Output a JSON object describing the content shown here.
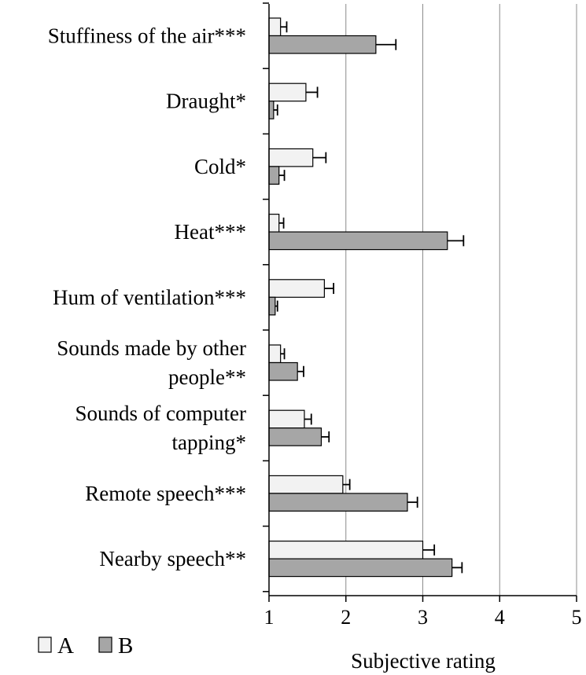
{
  "chart_data": {
    "type": "bar",
    "orientation": "horizontal",
    "categories": [
      [
        "Stuffiness of the air***"
      ],
      [
        "Draught*"
      ],
      [
        "Cold*"
      ],
      [
        "Heat***"
      ],
      [
        "Hum of ventilation***"
      ],
      [
        "Sounds made by other",
        "people**"
      ],
      [
        "Sounds of computer",
        "tapping*"
      ],
      [
        "Remote speech***"
      ],
      [
        "Nearby speech**"
      ]
    ],
    "series": [
      {
        "name": "A",
        "color": "#f2f2f2",
        "values": [
          1.15,
          1.48,
          1.57,
          1.13,
          1.72,
          1.15,
          1.46,
          1.96,
          3.0
        ],
        "errors": [
          0.08,
          0.15,
          0.17,
          0.06,
          0.12,
          0.05,
          0.09,
          0.09,
          0.15
        ]
      },
      {
        "name": "B",
        "color": "#a6a6a6",
        "values": [
          2.39,
          1.06,
          1.13,
          3.32,
          1.08,
          1.37,
          1.68,
          2.8,
          3.38
        ],
        "errors": [
          0.26,
          0.05,
          0.07,
          0.21,
          0.03,
          0.08,
          0.1,
          0.13,
          0.13
        ]
      }
    ],
    "xaxis": {
      "label": "Subjective rating",
      "range": [
        1,
        5
      ],
      "ticks": [
        "1",
        "2",
        "3",
        "4",
        "5"
      ]
    },
    "grid": "vertical",
    "legend": {
      "position": "bottom-left",
      "entries": [
        "A",
        "B"
      ]
    }
  }
}
